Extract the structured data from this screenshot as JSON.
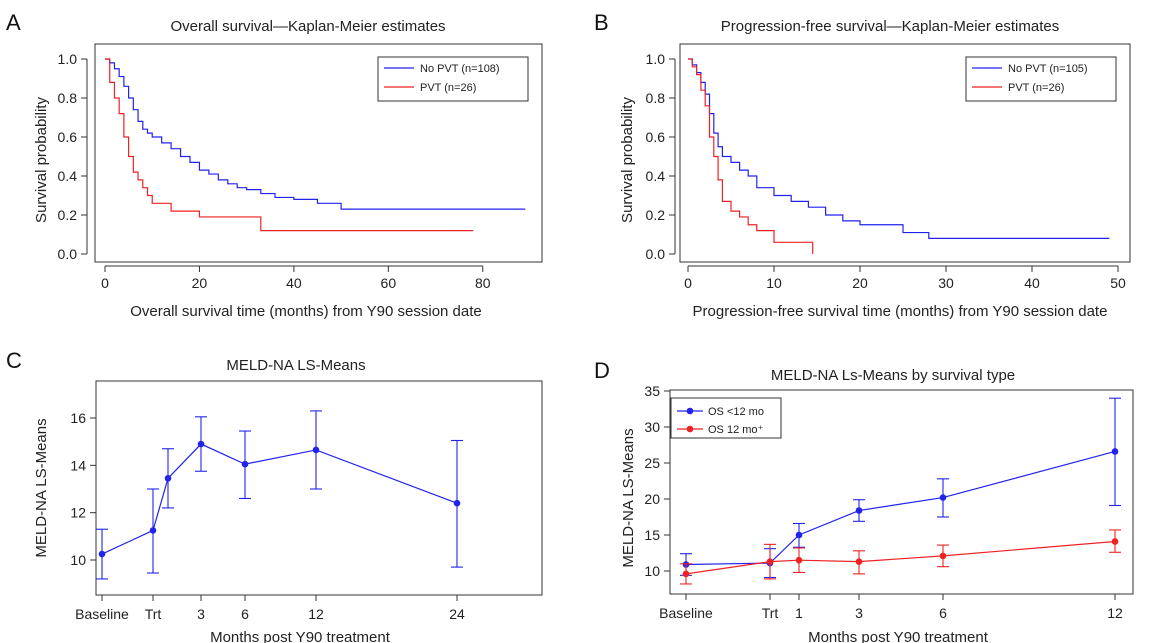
{
  "chart_data": [
    {
      "panel": "A",
      "type": "line",
      "title": "Overall survival—Kaplan-Meier estimates",
      "xlabel": "Overall survival time (months) from Y90 session date",
      "ylabel": "Survival probability",
      "xlim": [
        0,
        90
      ],
      "ylim": [
        0,
        1
      ],
      "xticks": [
        0,
        20,
        40,
        60,
        80
      ],
      "yticks": [
        0.0,
        0.2,
        0.4,
        0.6,
        0.8,
        1.0
      ],
      "legend_position": "top-right",
      "series": [
        {
          "name": "No PVT (n=108)",
          "color": "#2222ee",
          "x": [
            0,
            1,
            2,
            3,
            4,
            5,
            6,
            7,
            8,
            9,
            10,
            12,
            14,
            16,
            18,
            20,
            22,
            24,
            26,
            28,
            30,
            33,
            36,
            40,
            45,
            50,
            60,
            70,
            80,
            89
          ],
          "y": [
            1.0,
            0.98,
            0.95,
            0.91,
            0.86,
            0.8,
            0.74,
            0.68,
            0.64,
            0.62,
            0.6,
            0.57,
            0.54,
            0.5,
            0.47,
            0.43,
            0.41,
            0.38,
            0.36,
            0.34,
            0.33,
            0.31,
            0.29,
            0.28,
            0.26,
            0.23,
            0.23,
            0.23,
            0.23,
            0.23
          ]
        },
        {
          "name": "PVT (n=26)",
          "color": "#ee2222",
          "x": [
            0,
            1,
            2,
            3,
            4,
            5,
            6,
            7,
            8,
            9,
            10,
            14,
            20,
            33,
            50,
            65,
            78
          ],
          "y": [
            1.0,
            0.88,
            0.8,
            0.72,
            0.6,
            0.5,
            0.42,
            0.38,
            0.34,
            0.3,
            0.26,
            0.22,
            0.19,
            0.12,
            0.12,
            0.12,
            0.12
          ]
        }
      ]
    },
    {
      "panel": "B",
      "type": "line",
      "title": "Progression-free survival—Kaplan-Meier estimates",
      "xlabel": "Progression-free survival time (months) from Y90 session date",
      "ylabel": "Survival probability",
      "xlim": [
        0,
        50
      ],
      "ylim": [
        0,
        1
      ],
      "xticks": [
        0,
        10,
        20,
        30,
        40,
        50
      ],
      "yticks": [
        0.0,
        0.2,
        0.4,
        0.6,
        0.8,
        1.0
      ],
      "legend_position": "top-right",
      "series": [
        {
          "name": "No PVT (n=105)",
          "color": "#2222ee",
          "x": [
            0,
            0.5,
            1,
            1.5,
            2,
            2.5,
            3,
            3.5,
            4,
            5,
            6,
            7,
            8,
            10,
            12,
            14,
            16,
            18,
            20,
            25,
            28,
            35,
            42,
            49
          ],
          "y": [
            1.0,
            0.97,
            0.93,
            0.88,
            0.82,
            0.72,
            0.62,
            0.55,
            0.5,
            0.47,
            0.43,
            0.4,
            0.34,
            0.3,
            0.27,
            0.24,
            0.2,
            0.17,
            0.15,
            0.11,
            0.08,
            0.08,
            0.08,
            0.08
          ]
        },
        {
          "name": "PVT (n=26)",
          "color": "#ee2222",
          "x": [
            0,
            0.5,
            1,
            1.5,
            2,
            2.5,
            3,
            3.5,
            4,
            5,
            6,
            7,
            8,
            10,
            12,
            14.5
          ],
          "y": [
            1.0,
            0.96,
            0.92,
            0.84,
            0.76,
            0.6,
            0.5,
            0.38,
            0.27,
            0.22,
            0.19,
            0.15,
            0.12,
            0.06,
            0.06,
            0.0
          ]
        }
      ]
    },
    {
      "panel": "C",
      "type": "line",
      "title": "MELD-NA LS-Means",
      "xlabel": "Months post Y90 treatment",
      "ylabel": "MELD-NA LS-Means",
      "x_tick_labels": [
        "Baseline",
        "Trt",
        "3",
        "6",
        "12",
        "24"
      ],
      "ylim": [
        9,
        17
      ],
      "yticks": [
        10,
        12,
        14,
        16
      ],
      "series": [
        {
          "name": "",
          "color": "#2222ee",
          "x_labels": [
            "Baseline",
            "Trt",
            "",
            "3",
            "6",
            "12",
            "24"
          ],
          "y": [
            10.25,
            11.25,
            13.45,
            14.9,
            14.05,
            14.65,
            12.4
          ],
          "y_low": [
            9.2,
            9.45,
            12.2,
            13.75,
            12.6,
            13.0,
            9.7
          ],
          "y_high": [
            11.3,
            13.0,
            14.7,
            16.05,
            15.45,
            16.3,
            15.05
          ]
        }
      ]
    },
    {
      "panel": "D",
      "type": "line",
      "title": "MELD-NA Ls-Means by survival type",
      "xlabel": "Months post Y90 treatment",
      "ylabel": "MELD-NA LS-Means",
      "x_tick_labels": [
        "Baseline",
        "Trt",
        "1",
        "3",
        "6",
        "12"
      ],
      "ylim": [
        7,
        35
      ],
      "yticks": [
        10,
        15,
        20,
        25,
        30,
        35
      ],
      "legend_position": "top-left",
      "series": [
        {
          "name": "OS <12 mo",
          "color": "#2222ee",
          "x_labels": [
            "Baseline",
            "Trt",
            "1",
            "3",
            "6",
            "12"
          ],
          "y": [
            10.9,
            11.1,
            15.0,
            18.4,
            20.2,
            26.6
          ],
          "y_low": [
            9.4,
            9.1,
            13.3,
            16.9,
            17.5,
            19.1
          ],
          "y_high": [
            12.4,
            13.1,
            16.6,
            19.9,
            22.8,
            34.0
          ]
        },
        {
          "name": "OS 12 mo⁺",
          "color": "#ee2222",
          "x_labels": [
            "Baseline",
            "Trt",
            "1",
            "3",
            "6",
            "12"
          ],
          "y": [
            9.6,
            11.3,
            11.5,
            11.3,
            12.1,
            14.1
          ],
          "y_low": [
            8.2,
            8.9,
            9.8,
            9.6,
            10.6,
            12.6
          ],
          "y_high": [
            11.0,
            13.7,
            13.2,
            12.8,
            13.6,
            15.7
          ]
        }
      ]
    }
  ],
  "panels": {
    "A": {
      "letter": "A"
    },
    "B": {
      "letter": "B"
    },
    "C": {
      "letter": "C"
    },
    "D": {
      "letter": "D"
    }
  }
}
